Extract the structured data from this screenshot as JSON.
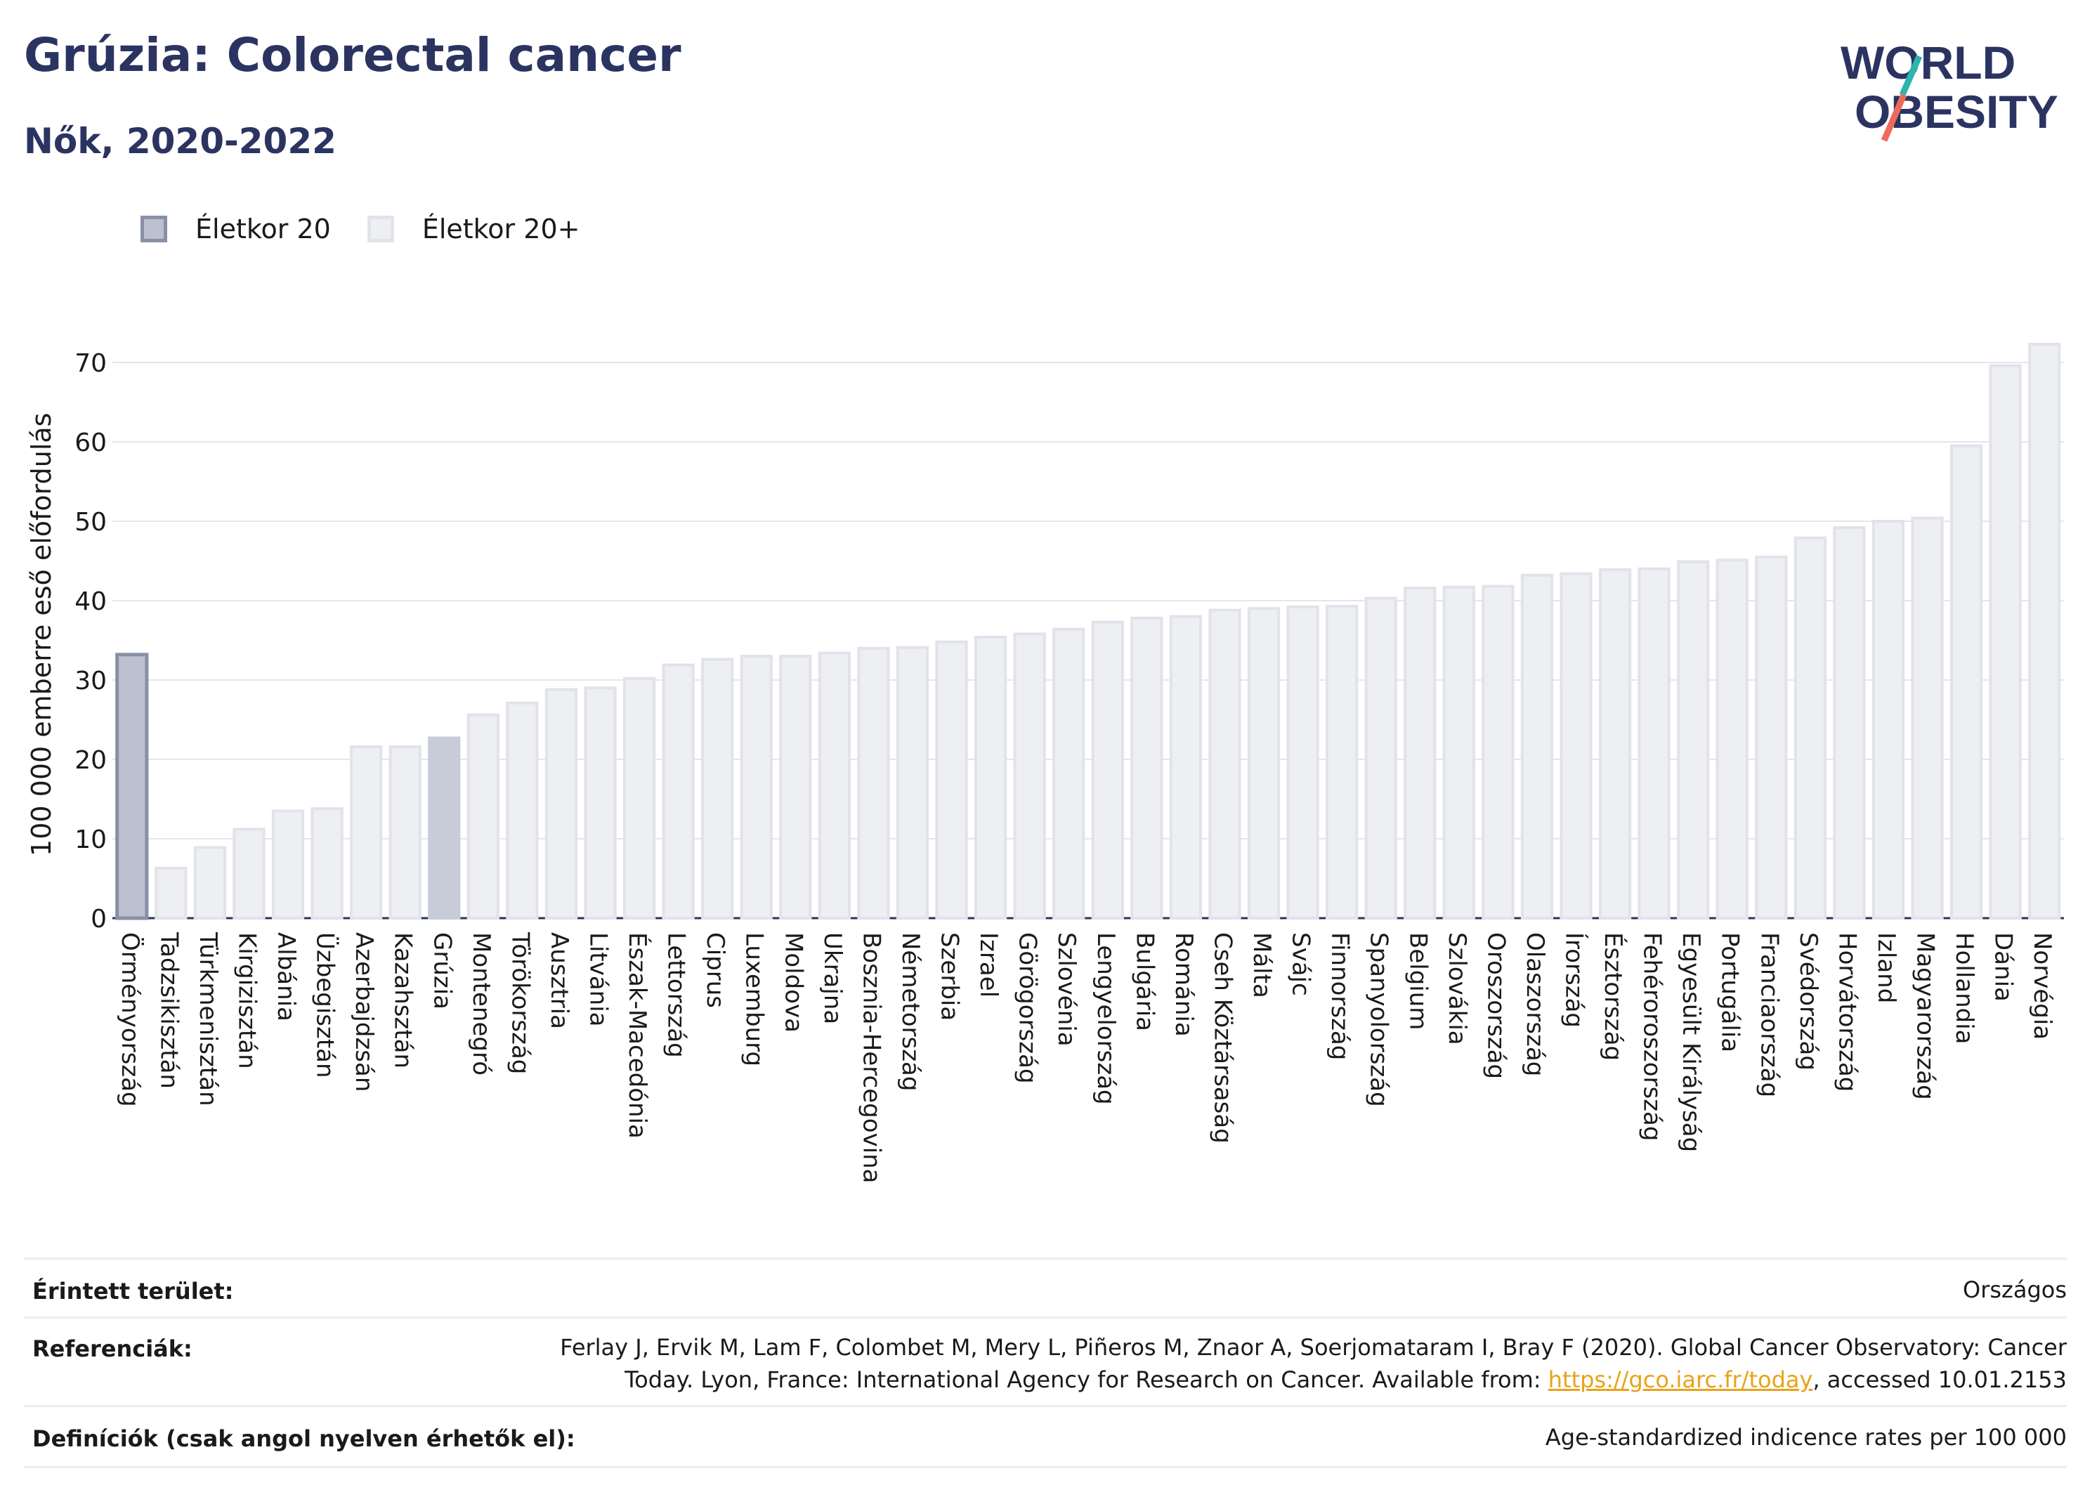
{
  "header": {
    "title": "Grúzia: Colorectal cancer",
    "subtitle": "Nők, 2020-2022"
  },
  "logo": {
    "line1": "WORLD",
    "line2": "OBESITY",
    "colors": {
      "text": "#2b3461",
      "slash_teal": "#2bb5b0",
      "slash_coral": "#ee6a5a"
    }
  },
  "legend": {
    "items": [
      {
        "label": "Életkor 20",
        "color": "#bdc0cf"
      },
      {
        "label": "Életkor 20+",
        "color": "#eeeff3"
      }
    ]
  },
  "chart_data": {
    "type": "bar",
    "ylabel": "100 000 emberre eső előfordulás",
    "xlabel": "",
    "ylim": [
      0,
      75
    ],
    "yticks": [
      0,
      10,
      20,
      30,
      40,
      50,
      60,
      70
    ],
    "grid": true,
    "legend_position": "top-left",
    "highlight_category": "Grúzia",
    "colors": {
      "highlight_fill": "#c8cbd8",
      "first_fill": "#bdc0cf",
      "first_stroke": "#8a8fa8",
      "bar_fill": "#eeeff3",
      "bar_stroke": "#e2e3ea"
    },
    "categories": [
      "Örményország",
      "Tadzsikisztán",
      "Türkmenisztán",
      "Kirgizisztán",
      "Albánia",
      "Üzbegisztán",
      "Azerbajdzsán",
      "Kazahsztán",
      "Grúzia",
      "Montenegró",
      "Törökország",
      "Ausztria",
      "Litvánia",
      "Észak-Macedónia",
      "Lettország",
      "Ciprus",
      "Luxemburg",
      "Moldova",
      "Ukrajna",
      "Bosznia-Hercegovina",
      "Németország",
      "Szerbia",
      "Izrael",
      "Görögország",
      "Szlovénia",
      "Lengyelország",
      "Bulgária",
      "Románia",
      "Cseh Köztársaság",
      "Málta",
      "Svájc",
      "Finnország",
      "Spanyolország",
      "Belgium",
      "Szlovákia",
      "Oroszország",
      "Olaszország",
      "Írország",
      "Észtország",
      "Fehéroroszország",
      "Egyesült Királyság",
      "Portugália",
      "Franciaország",
      "Svédország",
      "Horvátország",
      "Izland",
      "Magyarország",
      "Hollandia",
      "Dánia",
      "Norvégia"
    ],
    "series": [
      {
        "values": [
          33.2,
          6.3,
          8.9,
          11.2,
          13.5,
          13.8,
          21.6,
          21.6,
          22.7,
          25.6,
          27.1,
          28.8,
          29.0,
          30.2,
          31.9,
          32.6,
          33.0,
          33.0,
          33.4,
          34.0,
          34.1,
          34.8,
          35.4,
          35.8,
          36.4,
          37.3,
          37.8,
          38.0,
          38.8,
          39.0,
          39.2,
          39.3,
          40.3,
          41.6,
          41.7,
          41.8,
          43.2,
          43.4,
          43.9,
          44.0,
          44.9,
          45.1,
          45.5,
          47.9,
          49.2,
          50.0,
          50.4,
          59.5,
          69.6,
          72.3
        ]
      }
    ]
  },
  "info": {
    "area_label": "Érintett terület:",
    "area_value": "Országos",
    "refs_label": "Referenciák:",
    "refs_line1": "Ferlay J, Ervik M, Lam F, Colombet M, Mery L, Piñeros M, Znaor A, Soerjomataram I, Bray F (2020). Global Cancer Observatory: Cancer",
    "refs_line2_pre": "Today. Lyon, France: International Agency for Research on Cancer. Available from: ",
    "refs_link": "https://gco.iarc.fr/today",
    "refs_line2_post": ", accessed 10.01.2153",
    "defs_label": "Definíciók (csak angol nyelven érhetők el):",
    "defs_value": "Age-standardized indicence rates per 100 000"
  }
}
